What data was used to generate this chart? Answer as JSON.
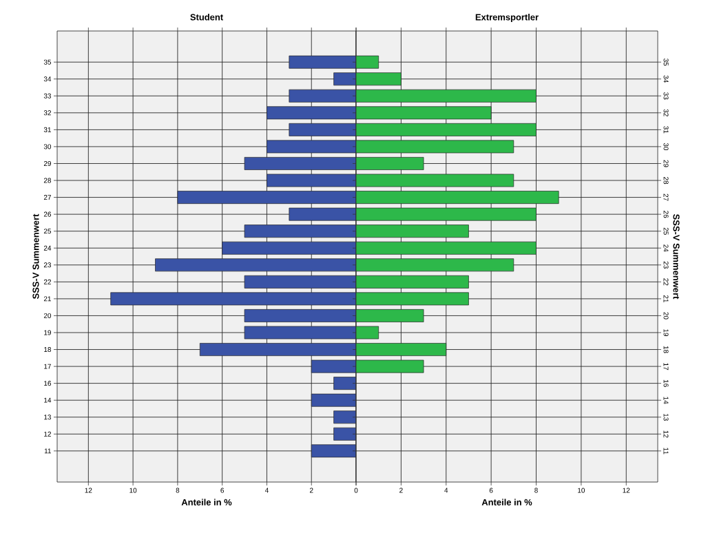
{
  "chart_data": [
    {
      "type": "bar",
      "orientation": "horizontal",
      "title": "Student",
      "xlabel": "Anteile in %",
      "ylabel": "SSS-V Summenwert",
      "categories": [
        "35",
        "34",
        "33",
        "32",
        "31",
        "30",
        "29",
        "28",
        "27",
        "26",
        "25",
        "24",
        "23",
        "22",
        "21",
        "20",
        "19",
        "18",
        "17",
        "16",
        "14",
        "13",
        "12",
        "11"
      ],
      "values": [
        3,
        1,
        3,
        4,
        3,
        4,
        5,
        4,
        8,
        3,
        5,
        6,
        9,
        5,
        11,
        5,
        5,
        7,
        2,
        1,
        2,
        1,
        1,
        2
      ],
      "color": "#3a53a6",
      "xlim": [
        13.4,
        0
      ],
      "xticks": [
        {
          "value": 0,
          "label": null
        },
        2,
        4,
        6,
        8,
        10,
        12
      ],
      "grid": true
    },
    {
      "type": "bar",
      "orientation": "horizontal",
      "title": "Extremsportler",
      "xlabel": "Anteile in %",
      "ylabel": "SSS-V Summenwert",
      "categories": [
        "35",
        "34",
        "33",
        "32",
        "31",
        "30",
        "29",
        "28",
        "27",
        "26",
        "25",
        "24",
        "23",
        "22",
        "21",
        "20",
        "19",
        "18",
        "17",
        "16",
        "14",
        "13",
        "12",
        "11"
      ],
      "values": [
        1,
        2,
        8,
        6,
        8,
        7,
        3,
        7,
        9,
        8,
        5,
        8,
        7,
        5,
        5,
        3,
        1,
        4,
        3,
        null,
        null,
        null,
        null,
        null
      ],
      "color": "#2db84a",
      "xlim": [
        0,
        13.4
      ],
      "xticks": [
        0,
        2,
        4,
        6,
        8,
        10,
        12
      ],
      "grid": true
    }
  ]
}
